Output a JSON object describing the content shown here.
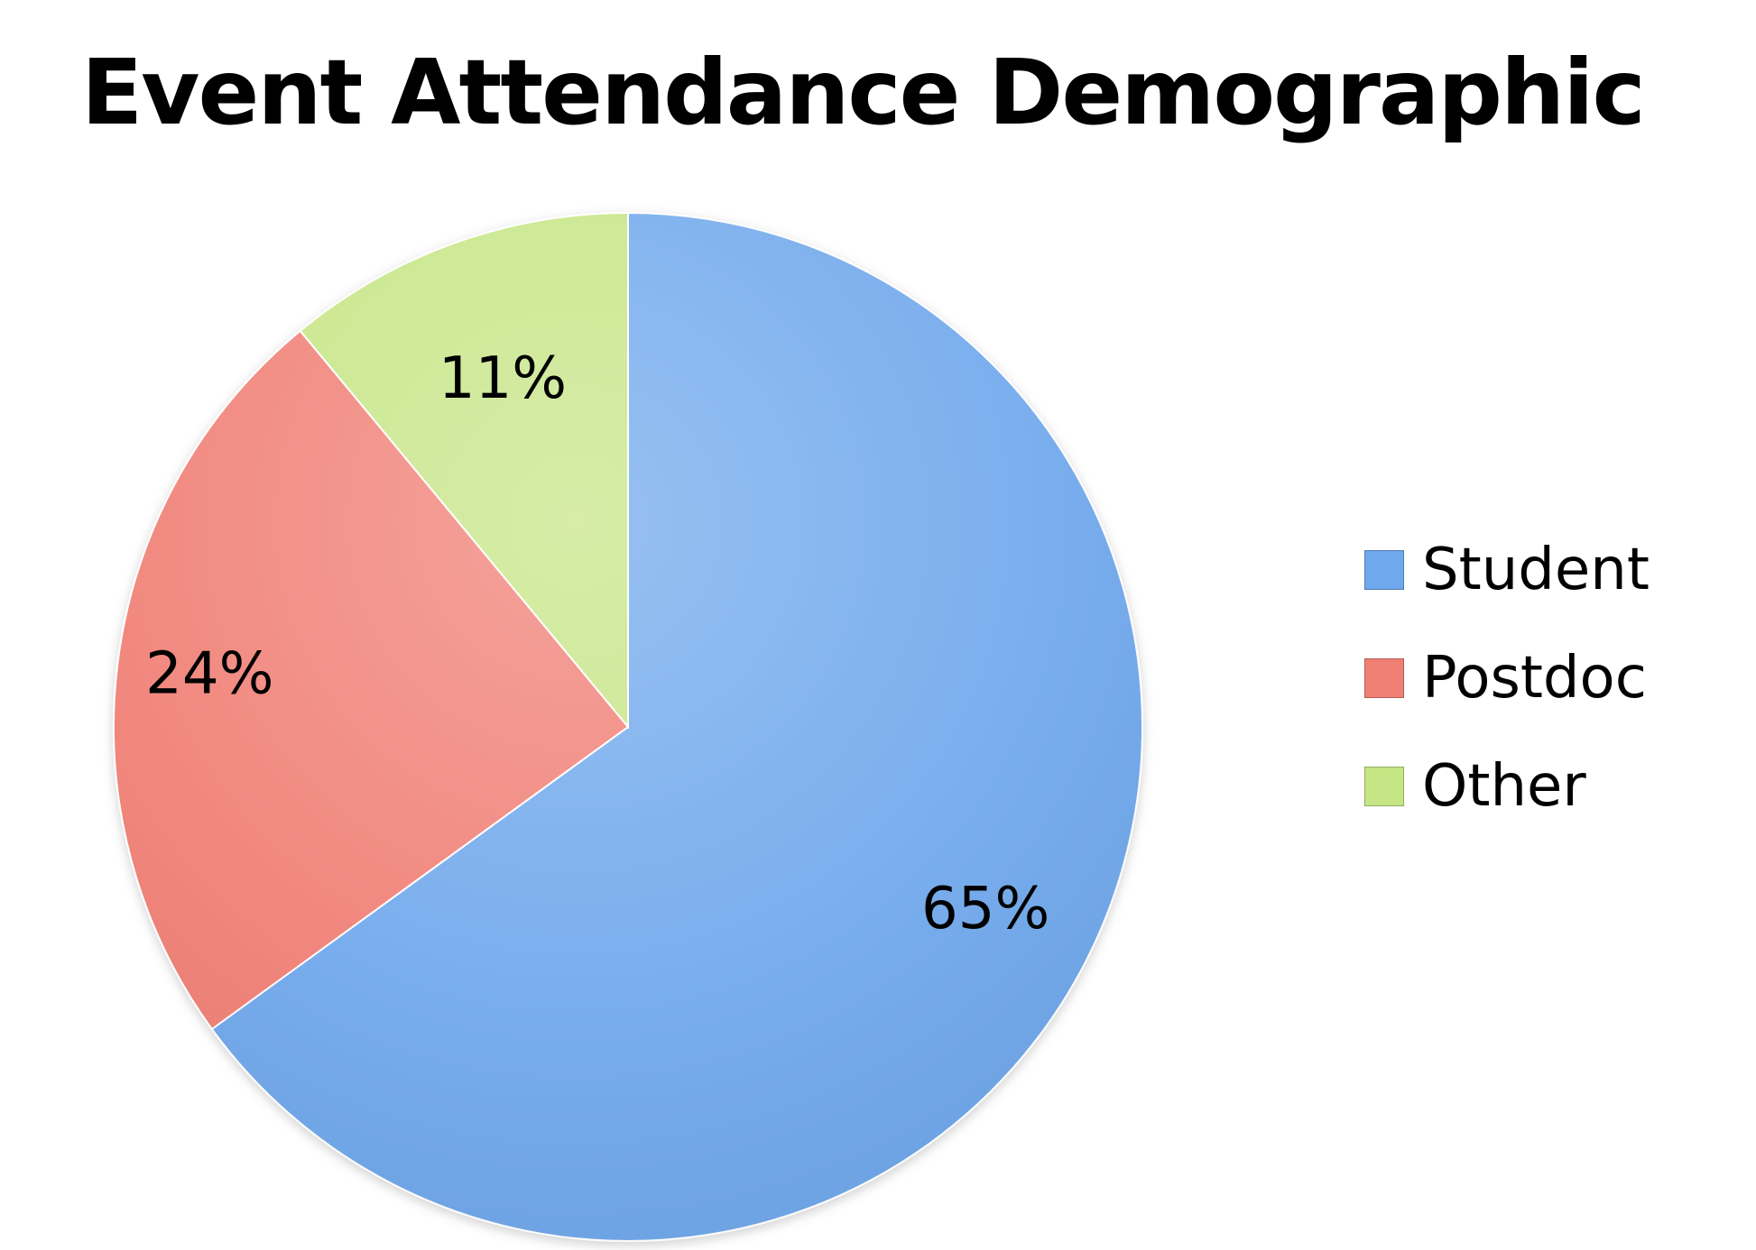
{
  "chart_data": {
    "type": "pie",
    "title": "Event Attendance Demographic",
    "categories": [
      "Student",
      "Postdoc",
      "Other"
    ],
    "values": [
      65,
      24,
      11
    ],
    "value_labels": [
      "65%",
      "24%",
      "11%"
    ],
    "colors": [
      "#6fa8ec",
      "#f07f74",
      "#c6e585"
    ],
    "start_angle_deg": 0,
    "direction": "clockwise",
    "legend_position": "right"
  }
}
